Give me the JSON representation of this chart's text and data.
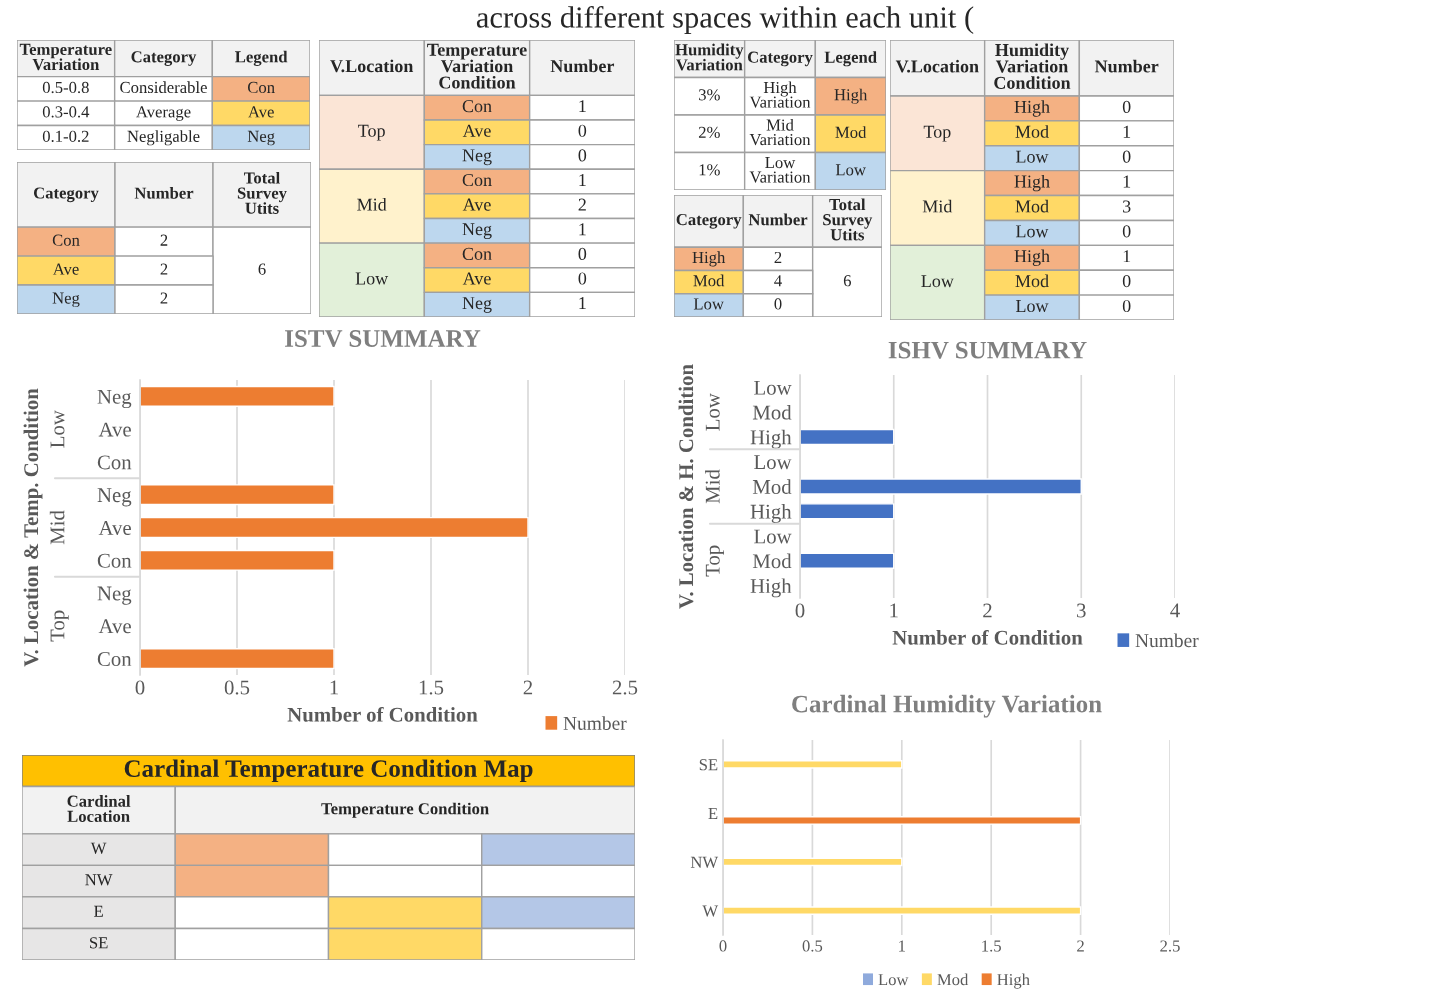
{
  "chart_data": [
    {
      "type": "other",
      "title": "across different spaces within each unit ("
    },
    {
      "type": "other",
      "categories": [
        "Temperature\nVariation",
        "Category",
        "Legend"
      ],
      "cell_labels": [
        [
          "0.5-0.8",
          "Considerable",
          "Con"
        ],
        [
          "0.3-0.4",
          "Average",
          "Ave"
        ],
        [
          "0.1-0.2",
          "Negligable",
          "Neg"
        ]
      ],
      "colors": [
        [
          null,
          null,
          "#f4b183"
        ],
        [
          null,
          null,
          "#ffd966"
        ],
        [
          null,
          null,
          "#bdd7ee"
        ]
      ]
    },
    {
      "type": "other",
      "categories": [
        "Category",
        "Number",
        "Total\nSurvey\nUtits"
      ],
      "cell_labels": [
        [
          "Con",
          "2",
          "6"
        ],
        [
          "Ave",
          "2",
          null
        ],
        [
          "Neg",
          "2",
          null
        ]
      ],
      "colors": [
        [
          "#f4b183",
          null,
          null
        ],
        [
          "#ffd966",
          null,
          null
        ],
        [
          "#bdd7ee",
          null,
          null
        ]
      ]
    },
    {
      "type": "other",
      "categories": [
        "V.Location",
        "Temperature\nVariation\nCondition",
        "Number"
      ],
      "cell_labels": [
        [
          "Top",
          "Con",
          "1"
        ],
        [
          null,
          "Ave",
          "0"
        ],
        [
          null,
          "Neg",
          "0"
        ],
        [
          "Mid",
          "Con",
          "1"
        ],
        [
          null,
          "Ave",
          "2"
        ],
        [
          null,
          "Neg",
          "1"
        ],
        [
          "Low",
          "Con",
          "0"
        ],
        [
          null,
          "Ave",
          "0"
        ],
        [
          null,
          "Neg",
          "1"
        ]
      ],
      "colors": [
        [
          "#fbe5d6",
          "#f4b183",
          null
        ],
        [
          null,
          "#ffd966",
          null
        ],
        [
          null,
          "#bdd7ee",
          null
        ],
        [
          "#fff2cc",
          "#f4b183",
          null
        ],
        [
          null,
          "#ffd966",
          null
        ],
        [
          null,
          "#bdd7ee",
          null
        ],
        [
          "#e2f0d9",
          "#f4b183",
          null
        ],
        [
          null,
          "#ffd966",
          null
        ],
        [
          null,
          "#bdd7ee",
          null
        ]
      ]
    },
    {
      "type": "other",
      "categories": [
        "Humidity\nVariation",
        "Category",
        "Legend"
      ],
      "cell_labels": [
        [
          "3%",
          "High\nVariation",
          "High"
        ],
        [
          "2%",
          "Mid\nVariation",
          "Mod"
        ],
        [
          "1%",
          "Low\nVariation",
          "Low"
        ]
      ],
      "colors": [
        [
          null,
          null,
          "#f4b183"
        ],
        [
          null,
          null,
          "#ffd966"
        ],
        [
          null,
          null,
          "#bdd7ee"
        ]
      ]
    },
    {
      "type": "other",
      "categories": [
        "Category",
        "Number",
        "Total\nSurvey\nUtits"
      ],
      "cell_labels": [
        [
          "High",
          "2",
          "6"
        ],
        [
          "Mod",
          "4",
          null
        ],
        [
          "Low",
          "0",
          null
        ]
      ],
      "colors": [
        [
          "#f4b183",
          null,
          null
        ],
        [
          "#ffd966",
          null,
          null
        ],
        [
          "#bdd7ee",
          null,
          null
        ]
      ]
    },
    {
      "type": "other",
      "categories": [
        "V.Location",
        "Humidity\nVariation\nCondition",
        "Number"
      ],
      "cell_labels": [
        [
          "Top",
          "High",
          "0"
        ],
        [
          null,
          "Mod",
          "1"
        ],
        [
          null,
          "Low",
          "0"
        ],
        [
          "Mid",
          "High",
          "1"
        ],
        [
          null,
          "Mod",
          "3"
        ],
        [
          null,
          "Low",
          "0"
        ],
        [
          "Low",
          "High",
          "1"
        ],
        [
          null,
          "Mod",
          "0"
        ],
        [
          null,
          "Low",
          "0"
        ]
      ],
      "colors": [
        [
          "#fbe5d6",
          "#f4b183",
          null
        ],
        [
          null,
          "#ffd966",
          null
        ],
        [
          null,
          "#bdd7ee",
          null
        ],
        [
          "#fff2cc",
          "#f4b183",
          null
        ],
        [
          null,
          "#ffd966",
          null
        ],
        [
          null,
          "#bdd7ee",
          null
        ],
        [
          "#e2f0d9",
          "#f4b183",
          null
        ],
        [
          null,
          "#ffd966",
          null
        ],
        [
          null,
          "#bdd7ee",
          null
        ]
      ]
    },
    {
      "type": "bar",
      "orientation": "horizontal",
      "title": "ISTV SUMMARY",
      "xlabel": "Number of Condition",
      "ylabel": "V. Location & Temp. Condition",
      "categories": [
        "Neg",
        "Ave",
        "Con",
        "Neg",
        "Ave",
        "Con",
        "Neg",
        "Ave",
        "Con"
      ],
      "annotations": [
        "Low",
        "Mid",
        "Top"
      ],
      "series": [
        {
          "name": "Number",
          "color": "#ed7d31",
          "values": [
            1,
            0,
            0,
            1,
            2,
            1,
            0,
            0,
            1
          ]
        }
      ],
      "xlim": [
        0,
        2.5
      ],
      "xticks": [
        0,
        0.5,
        1,
        1.5,
        2,
        2.5
      ],
      "grid": "x",
      "legend": "bottom right"
    },
    {
      "type": "bar",
      "orientation": "horizontal",
      "xlabel": "Number of Condition",
      "ylabel": "V. Location & H. Condition",
      "title": "ISHV SUMMARY",
      "categories": [
        "Low",
        "Mod",
        "High",
        "Low",
        "Mod",
        "High",
        "Low",
        "Mod",
        "High"
      ],
      "annotations": [
        "Low",
        "Mid",
        "Top"
      ],
      "series": [
        {
          "name": "Number",
          "color": "#4472c4",
          "values": [
            0,
            0,
            1,
            0,
            3,
            1,
            0,
            1,
            0
          ]
        }
      ],
      "xlim": [
        0,
        4
      ],
      "xticks": [
        0,
        1,
        2,
        3,
        4
      ],
      "grid": "x",
      "legend": "bottom right"
    },
    {
      "type": "other",
      "title": "Cardinal Temperature Condition Map",
      "color": "#ffc000",
      "categories": [
        "Cardinal\nLocation",
        "Temperature Condition",
        null,
        null
      ],
      "cell_labels": [
        [
          "W"
        ],
        [
          "NW"
        ],
        [
          "E"
        ],
        [
          "SE"
        ]
      ],
      "colors": [
        [
          "#e7e6e6",
          "#f4b183",
          null,
          "#b4c7e7"
        ],
        [
          "#e7e6e6",
          "#f4b183",
          null,
          null
        ],
        [
          "#e7e6e6",
          null,
          "#ffd966",
          "#b4c7e7"
        ],
        [
          "#e7e6e6",
          null,
          "#ffd966",
          null
        ]
      ]
    },
    {
      "type": "bar",
      "orientation": "horizontal",
      "title": "Cardinal Humidity Variation",
      "categories": [
        "SE",
        "E",
        "NW",
        "W"
      ],
      "series": [
        {
          "name": "Low",
          "color": "#8faadc",
          "values": [
            0,
            0,
            0,
            0
          ]
        },
        {
          "name": "Mod",
          "color": "#ffd966",
          "values": [
            1,
            0,
            1,
            2
          ]
        },
        {
          "name": "High",
          "color": "#ed7d31",
          "values": [
            0,
            2,
            0,
            0
          ]
        }
      ],
      "xlim": [
        0,
        2.5
      ],
      "xticks": [
        0,
        0.5,
        1,
        1.5,
        2,
        2.5
      ],
      "grid": "x",
      "legend": "bottom"
    }
  ]
}
